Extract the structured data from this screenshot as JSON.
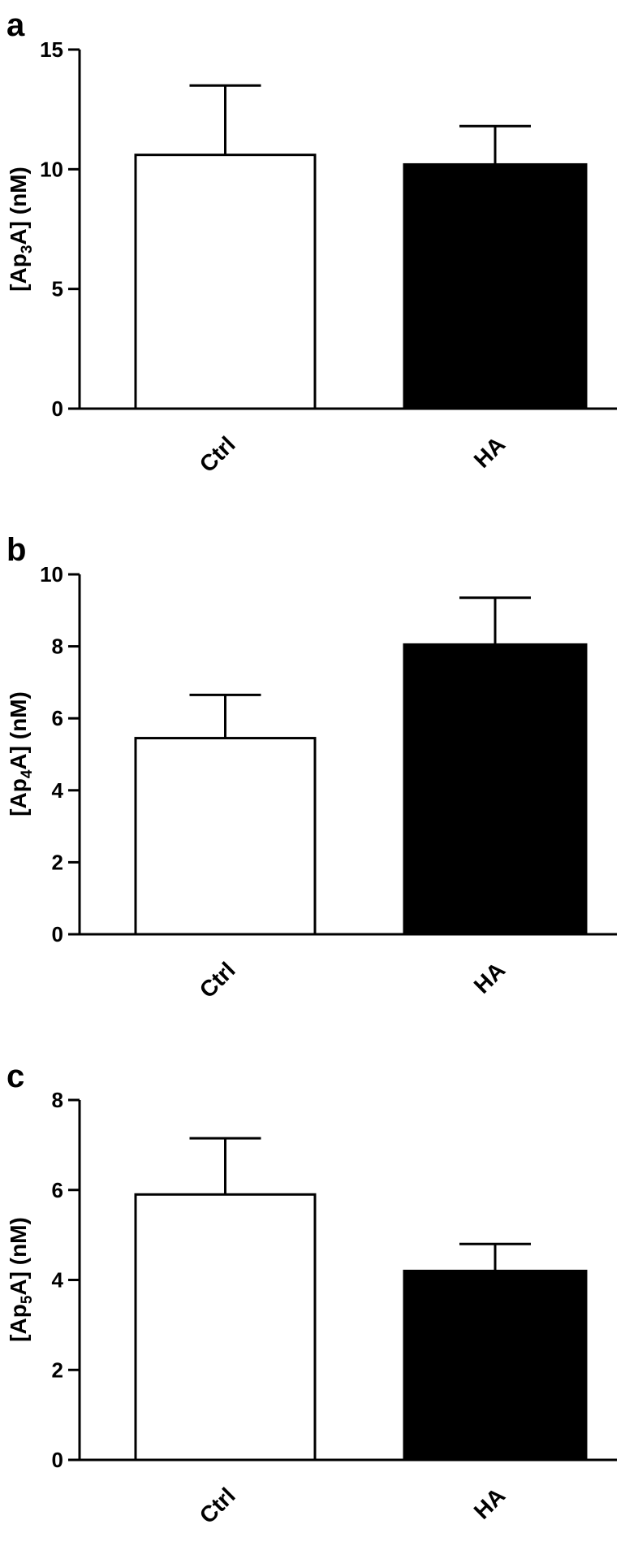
{
  "chart_data": [
    {
      "type": "bar",
      "panel": "a",
      "categories": [
        "Ctrl",
        "HA"
      ],
      "values": [
        10.6,
        10.2
      ],
      "errors": [
        2.9,
        1.6
      ],
      "colors": [
        "#ffffff",
        "#000000"
      ],
      "ylabel": {
        "prefix": "[Ap",
        "sub": "3",
        "suffix": "A] (nM)"
      },
      "ylim": [
        0,
        15
      ],
      "yticks": [
        0,
        5,
        10,
        15
      ],
      "grid": false
    },
    {
      "type": "bar",
      "panel": "b",
      "categories": [
        "Ctrl",
        "HA"
      ],
      "values": [
        5.45,
        8.05
      ],
      "errors": [
        1.2,
        1.3
      ],
      "colors": [
        "#ffffff",
        "#000000"
      ],
      "ylabel": {
        "prefix": "[Ap",
        "sub": "4",
        "suffix": "A] (nM)"
      },
      "ylim": [
        0,
        10
      ],
      "yticks": [
        0,
        2,
        4,
        6,
        8,
        10
      ],
      "grid": false
    },
    {
      "type": "bar",
      "panel": "c",
      "categories": [
        "Ctrl",
        "HA"
      ],
      "values": [
        5.9,
        4.2
      ],
      "errors": [
        1.25,
        0.6
      ],
      "colors": [
        "#ffffff",
        "#000000"
      ],
      "ylabel": {
        "prefix": "[Ap",
        "sub": "5",
        "suffix": "A] (nM)"
      },
      "ylim": [
        0,
        8
      ],
      "yticks": [
        0,
        2,
        4,
        6,
        8
      ],
      "grid": false
    }
  ]
}
